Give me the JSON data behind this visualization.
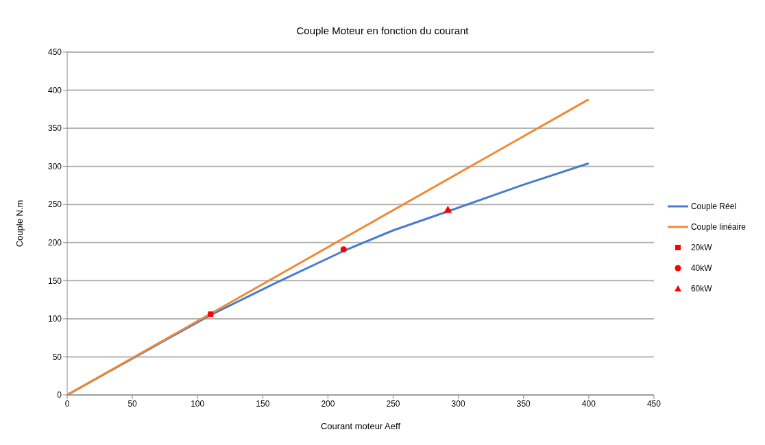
{
  "chart_data": {
    "type": "line",
    "title": "Couple Moteur en fonction du courant",
    "xlabel": "Courant moteur Aeff",
    "ylabel": "Couple N.m",
    "xlim": [
      0,
      450
    ],
    "xticks": [
      0,
      50,
      100,
      150,
      200,
      250,
      300,
      350,
      400,
      450
    ],
    "ylim": [
      0,
      450
    ],
    "yticks": [
      0,
      50,
      100,
      150,
      200,
      250,
      300,
      350,
      400,
      450
    ],
    "grid": "y",
    "legend": "right",
    "line_style": "solid",
    "series": [
      {
        "name": "Couple Réel",
        "color": "#4a7bd0",
        "marker": "none",
        "x": [
          0,
          110,
          160,
          212,
          250,
          292,
          350,
          400
        ],
        "values": [
          0,
          105,
          147,
          189,
          216,
          241,
          276,
          304
        ]
      },
      {
        "name": "Couple linéaire",
        "color": "#f08a35",
        "marker": "none",
        "x": [
          0,
          400
        ],
        "values": [
          0,
          388
        ]
      },
      {
        "name": "20kW",
        "type": "scatter",
        "color": "#ff0000",
        "marker": "square",
        "x": [
          110
        ],
        "values": [
          106
        ]
      },
      {
        "name": "40kW",
        "type": "scatter",
        "color": "#ff0000",
        "marker": "circle",
        "x": [
          212
        ],
        "values": [
          191
        ]
      },
      {
        "name": "60kW",
        "type": "scatter",
        "color": "#ff0000",
        "marker": "triangle",
        "x": [
          292
        ],
        "values": [
          242
        ]
      }
    ]
  }
}
